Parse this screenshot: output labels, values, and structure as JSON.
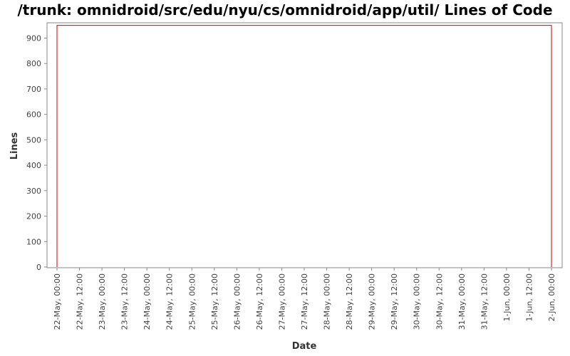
{
  "chart_data": {
    "type": "line",
    "title": "/trunk: omnidroid/src/edu/nyu/cs/omnidroid/app/util/ Lines of Code",
    "xlabel": "Date",
    "ylabel": "Lines",
    "x_ticks": [
      "22-May, 00:00",
      "22-May, 12:00",
      "23-May, 00:00",
      "23-May, 12:00",
      "24-May, 00:00",
      "24-May, 12:00",
      "25-May, 00:00",
      "25-May, 12:00",
      "26-May, 00:00",
      "26-May, 12:00",
      "27-May, 00:00",
      "27-May, 12:00",
      "28-May, 00:00",
      "28-May, 12:00",
      "29-May, 00:00",
      "29-May, 12:00",
      "30-May, 00:00",
      "30-May, 12:00",
      "31-May, 00:00",
      "31-May, 12:00",
      "1-Jun, 00:00",
      "1-Jun, 12:00",
      "2-Jun, 00:00"
    ],
    "y_ticks": [
      0,
      100,
      200,
      300,
      400,
      500,
      600,
      700,
      800,
      900
    ],
    "ylim": [
      0,
      960
    ],
    "series": [
      {
        "values": [
          [
            0,
            0
          ],
          [
            0,
            950
          ],
          [
            22,
            950
          ],
          [
            22,
            0
          ]
        ],
        "color": "#cc0000"
      }
    ],
    "grid": false
  }
}
